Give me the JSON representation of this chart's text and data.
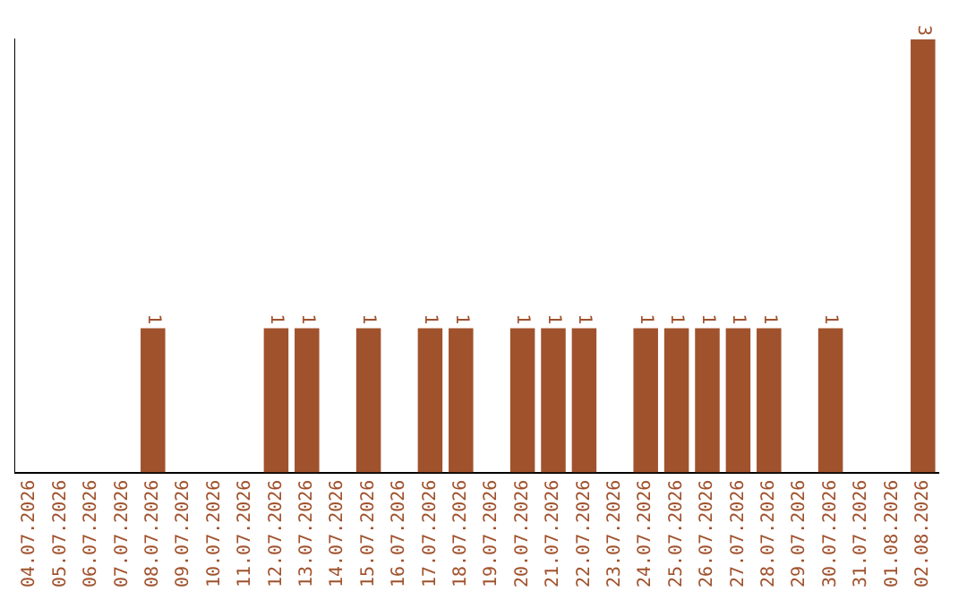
{
  "chart_data": {
    "type": "bar",
    "categories": [
      "04.07.2026",
      "05.07.2026",
      "06.07.2026",
      "07.07.2026",
      "08.07.2026",
      "09.07.2026",
      "10.07.2026",
      "11.07.2026",
      "12.07.2026",
      "13.07.2026",
      "14.07.2026",
      "15.07.2026",
      "16.07.2026",
      "17.07.2026",
      "18.07.2026",
      "19.07.2026",
      "20.07.2026",
      "21.07.2026",
      "22.07.2026",
      "23.07.2026",
      "24.07.2026",
      "25.07.2026",
      "26.07.2026",
      "27.07.2026",
      "28.07.2026",
      "29.07.2026",
      "30.07.2026",
      "31.07.2026",
      "01.08.2026",
      "02.08.2026"
    ],
    "values": [
      0,
      0,
      0,
      0,
      1,
      0,
      0,
      0,
      1,
      1,
      0,
      1,
      0,
      1,
      1,
      0,
      1,
      1,
      1,
      0,
      1,
      1,
      1,
      1,
      1,
      0,
      1,
      0,
      0,
      3
    ],
    "value_labels": [
      null,
      null,
      null,
      null,
      "1",
      null,
      null,
      null,
      "1",
      "1",
      null,
      "1",
      null,
      "1",
      "1",
      null,
      "1",
      "1",
      "1",
      null,
      "1",
      "1",
      "1",
      "1",
      "1",
      null,
      "1",
      null,
      null,
      "3"
    ],
    "color": "#a0522d",
    "tick_labels": "x",
    "grid": false,
    "legend": false
  }
}
